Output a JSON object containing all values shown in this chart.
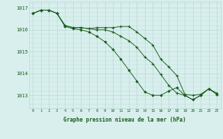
{
  "title": "Graphe pression niveau de la mer (hPa)",
  "background_color": "#d8efee",
  "grid_color": "#b8d8d4",
  "line_color": "#1a5c1a",
  "x_labels": [
    "0",
    "1",
    "2",
    "3",
    "4",
    "5",
    "6",
    "7",
    "8",
    "9",
    "10",
    "11",
    "12",
    "13",
    "14",
    "15",
    "16",
    "17",
    "18",
    "19",
    "20",
    "21",
    "22",
    "23"
  ],
  "ylim": [
    1012.4,
    1017.3
  ],
  "yticks": [
    1013,
    1014,
    1015,
    1016,
    1017
  ],
  "series": {
    "line1_plus": [
      1016.75,
      1016.9,
      1016.9,
      1016.75,
      1016.2,
      1016.1,
      1016.1,
      1016.05,
      1016.1,
      1016.1,
      1016.1,
      1016.15,
      1016.15,
      1015.9,
      1015.6,
      1015.3,
      1014.65,
      1014.3,
      1013.9,
      1013.05,
      1013.0,
      1013.05,
      1013.3,
      1013.1
    ],
    "line2_plus": [
      1016.75,
      1016.9,
      1016.9,
      1016.75,
      1016.2,
      1016.1,
      1016.1,
      1016.05,
      1016.0,
      1016.0,
      1015.9,
      1015.7,
      1015.5,
      1015.2,
      1014.75,
      1014.45,
      1013.95,
      1013.45,
      1013.1,
      1013.0,
      1012.8,
      1013.0,
      1013.3,
      1013.05
    ],
    "line3_diamond": [
      1016.75,
      1016.9,
      1016.9,
      1016.75,
      1016.15,
      1016.05,
      1016.0,
      1015.9,
      1015.7,
      1015.45,
      1015.1,
      1014.65,
      1014.15,
      1013.65,
      1013.15,
      1013.0,
      1013.0,
      1013.2,
      1013.35,
      1013.0,
      1012.8,
      1013.0,
      1013.3,
      1013.05
    ]
  }
}
